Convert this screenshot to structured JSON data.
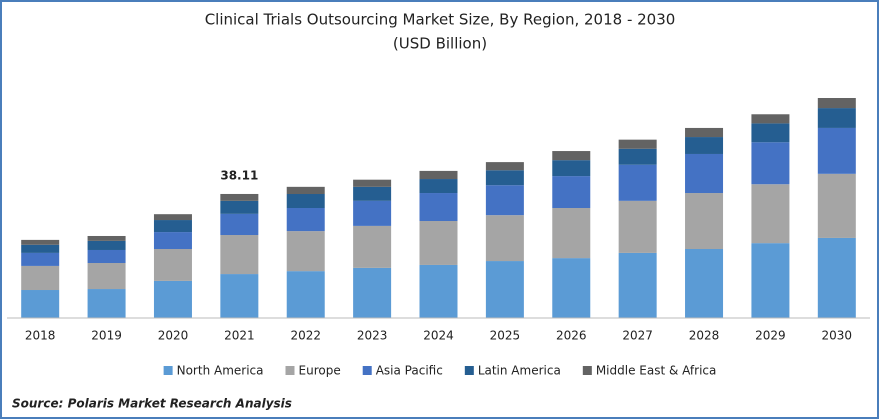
{
  "chart_data": {
    "type": "stacked_bar",
    "title": "Clinical Trials Outsourcing Market Size, By Region, 2018 - 2030",
    "subtitle": "(USD Billion)",
    "categories": [
      "2018",
      "2019",
      "2020",
      "2021",
      "2022",
      "2023",
      "2024",
      "2025",
      "2026",
      "2027",
      "2028",
      "2029",
      "2030"
    ],
    "series": [
      {
        "name": "North America",
        "color": "#5b9bd5",
        "values": [
          8.6,
          8.9,
          11.4,
          13.5,
          14.4,
          15.4,
          16.3,
          17.5,
          18.4,
          20.0,
          21.2,
          23.0,
          24.6
        ]
      },
      {
        "name": "Europe",
        "color": "#a5a5a5",
        "values": [
          7.4,
          8.0,
          9.8,
          12.0,
          12.3,
          12.9,
          13.5,
          14.1,
          15.4,
          16.0,
          17.2,
          18.1,
          19.7
        ]
      },
      {
        "name": "Asia Pacific",
        "color": "#4472c4",
        "values": [
          4.0,
          4.0,
          5.2,
          6.5,
          7.1,
          7.7,
          8.6,
          9.2,
          9.8,
          11.1,
          12.0,
          12.9,
          14.1
        ]
      },
      {
        "name": "Latin America",
        "color": "#255e91",
        "values": [
          2.5,
          2.8,
          3.7,
          4.0,
          4.3,
          4.3,
          4.3,
          4.6,
          4.9,
          4.9,
          5.2,
          5.8,
          6.1
        ]
      },
      {
        "name": "Middle East & Africa",
        "color": "#636363",
        "values": [
          1.5,
          1.5,
          1.8,
          2.11,
          2.2,
          2.2,
          2.5,
          2.5,
          2.8,
          2.8,
          2.8,
          2.8,
          3.1
        ]
      }
    ],
    "annotations": [
      {
        "x": "2021",
        "value": 38.11,
        "text": "38.11"
      }
    ],
    "legend": "bottom",
    "source": "Source: Polaris  Market Research Analysis"
  }
}
